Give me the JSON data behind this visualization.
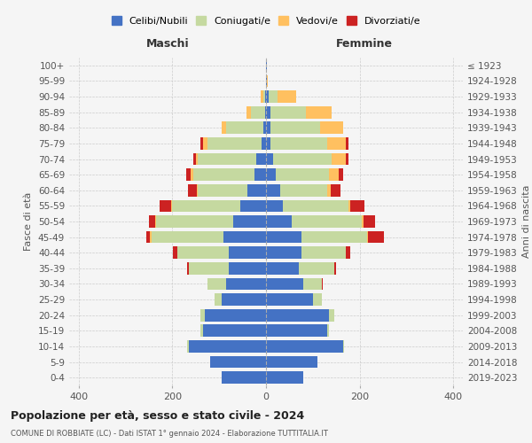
{
  "age_groups": [
    "0-4",
    "5-9",
    "10-14",
    "15-19",
    "20-24",
    "25-29",
    "30-34",
    "35-39",
    "40-44",
    "45-49",
    "50-54",
    "55-59",
    "60-64",
    "65-69",
    "70-74",
    "75-79",
    "80-84",
    "85-89",
    "90-94",
    "95-99",
    "100+"
  ],
  "birth_years": [
    "2019-2023",
    "2014-2018",
    "2009-2013",
    "2004-2008",
    "1999-2003",
    "1994-1998",
    "1989-1993",
    "1984-1988",
    "1979-1983",
    "1974-1978",
    "1969-1973",
    "1964-1968",
    "1959-1963",
    "1954-1958",
    "1949-1953",
    "1944-1948",
    "1939-1943",
    "1934-1938",
    "1929-1933",
    "1924-1928",
    "≤ 1923"
  ],
  "colors": {
    "celibi": "#4472c4",
    "coniugati": "#c5d9a0",
    "vedovi": "#ffc060",
    "divorziati": "#cc2222"
  },
  "males": {
    "celibi": [
      95,
      120,
      165,
      135,
      130,
      95,
      85,
      80,
      80,
      90,
      70,
      55,
      40,
      25,
      20,
      10,
      5,
      2,
      1,
      0,
      0
    ],
    "coniugati": [
      0,
      0,
      3,
      5,
      10,
      15,
      40,
      85,
      110,
      155,
      165,
      145,
      105,
      130,
      125,
      115,
      80,
      30,
      5,
      0,
      0
    ],
    "vedovi": [
      0,
      0,
      0,
      0,
      0,
      0,
      0,
      0,
      0,
      2,
      2,
      2,
      2,
      5,
      5,
      10,
      10,
      10,
      5,
      0,
      0
    ],
    "divorziati": [
      0,
      0,
      0,
      0,
      0,
      0,
      0,
      3,
      8,
      8,
      12,
      25,
      20,
      10,
      5,
      5,
      0,
      0,
      0,
      0,
      0
    ]
  },
  "females": {
    "celibi": [
      80,
      110,
      165,
      130,
      135,
      100,
      80,
      70,
      75,
      75,
      55,
      35,
      30,
      20,
      15,
      10,
      10,
      10,
      5,
      1,
      1
    ],
    "coniugati": [
      0,
      0,
      2,
      5,
      10,
      20,
      40,
      75,
      95,
      140,
      150,
      140,
      100,
      115,
      125,
      120,
      105,
      75,
      20,
      0,
      0
    ],
    "vedovi": [
      0,
      0,
      0,
      0,
      0,
      0,
      0,
      0,
      0,
      2,
      3,
      5,
      8,
      20,
      30,
      40,
      50,
      55,
      40,
      2,
      1
    ],
    "divorziati": [
      0,
      0,
      0,
      0,
      0,
      0,
      2,
      5,
      10,
      35,
      25,
      30,
      20,
      10,
      5,
      5,
      0,
      0,
      0,
      0,
      0
    ]
  },
  "xlim": 420,
  "title": "Popolazione per età, sesso e stato civile - 2024",
  "subtitle": "COMUNE DI ROBBIATE (LC) - Dati ISTAT 1° gennaio 2024 - Elaborazione TUTTITALIA.IT",
  "ylabel_left": "Fasce di età",
  "ylabel_right": "Anni di nascita",
  "xlabel_maschi": "Maschi",
  "xlabel_femmine": "Femmine",
  "legend_labels": [
    "Celibi/Nubili",
    "Coniugati/e",
    "Vedovi/e",
    "Divorziati/e"
  ],
  "bg_color": "#f5f5f5",
  "grid_color": "#cccccc"
}
